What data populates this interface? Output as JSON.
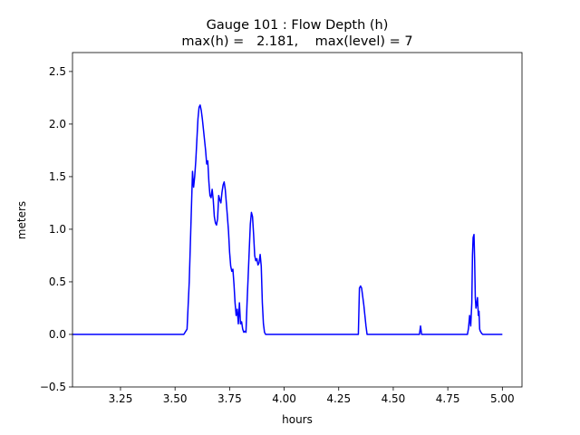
{
  "chart_data": {
    "type": "line",
    "title": "Gauge 101 : Flow Depth (h)",
    "subtitle": "max(h) =   2.181,    max(level) = 7",
    "xlabel": "hours",
    "ylabel": "meters",
    "xlim": [
      3.03,
      5.09
    ],
    "ylim": [
      -0.5,
      2.68
    ],
    "xticks": [
      "3.25",
      "3.50",
      "3.75",
      "4.00",
      "4.25",
      "4.50",
      "4.75",
      "5.00"
    ],
    "yticks": [
      "−0.5",
      "0.0",
      "0.5",
      "1.0",
      "1.5",
      "2.0",
      "2.5"
    ],
    "grid": false,
    "series": [
      {
        "color": "#0000ff",
        "x": [
          3.03,
          3.54,
          3.555,
          3.565,
          3.575,
          3.58,
          3.585,
          3.59,
          3.595,
          3.6,
          3.605,
          3.61,
          3.615,
          3.62,
          3.625,
          3.63,
          3.635,
          3.64,
          3.645,
          3.65,
          3.655,
          3.66,
          3.665,
          3.67,
          3.675,
          3.68,
          3.685,
          3.69,
          3.695,
          3.7,
          3.705,
          3.71,
          3.715,
          3.72,
          3.725,
          3.73,
          3.735,
          3.74,
          3.745,
          3.75,
          3.755,
          3.76,
          3.765,
          3.77,
          3.775,
          3.78,
          3.785,
          3.79,
          3.795,
          3.8,
          3.805,
          3.81,
          3.815,
          3.82,
          3.825,
          3.83,
          3.835,
          3.84,
          3.845,
          3.85,
          3.855,
          3.86,
          3.865,
          3.87,
          3.875,
          3.88,
          3.885,
          3.89,
          3.895,
          3.9,
          3.905,
          3.91,
          3.915,
          3.92,
          3.925,
          3.93,
          3.935,
          3.94,
          3.945,
          3.95,
          3.955,
          3.96,
          3.965,
          3.97,
          3.975,
          3.98,
          4.0,
          4.34,
          4.345,
          4.35,
          4.355,
          4.36,
          4.365,
          4.37,
          4.375,
          4.38,
          4.385,
          4.39,
          4.62,
          4.625,
          4.63,
          4.84,
          4.845,
          4.85,
          4.855,
          4.86,
          4.863,
          4.866,
          4.87,
          4.873,
          4.876,
          4.879,
          4.883,
          4.886,
          4.89,
          4.893,
          4.896,
          4.899,
          4.902,
          4.905,
          4.91,
          4.915,
          4.92,
          4.93,
          4.95,
          5.0
        ],
        "y": [
          0.0,
          0.0,
          0.05,
          0.5,
          1.2,
          1.55,
          1.4,
          1.5,
          1.65,
          1.85,
          2.05,
          2.16,
          2.181,
          2.13,
          2.05,
          1.95,
          1.85,
          1.75,
          1.62,
          1.65,
          1.45,
          1.32,
          1.3,
          1.38,
          1.28,
          1.12,
          1.06,
          1.04,
          1.1,
          1.32,
          1.28,
          1.25,
          1.35,
          1.42,
          1.45,
          1.38,
          1.25,
          1.12,
          0.98,
          0.78,
          0.65,
          0.6,
          0.62,
          0.48,
          0.3,
          0.18,
          0.24,
          0.1,
          0.3,
          0.1,
          0.12,
          0.05,
          0.02,
          0.03,
          0.02,
          0.3,
          0.55,
          0.8,
          1.05,
          1.16,
          1.12,
          0.95,
          0.75,
          0.7,
          0.72,
          0.66,
          0.68,
          0.76,
          0.65,
          0.3,
          0.1,
          0.02,
          0.0,
          0.0,
          0.0,
          0.0,
          0.0,
          0.0,
          0.0,
          0.0,
          0.0,
          0.0,
          0.0,
          0.0,
          0.0,
          0.0,
          0.0,
          0.0,
          0.44,
          0.46,
          0.44,
          0.36,
          0.28,
          0.18,
          0.08,
          0.0,
          0.0,
          0.0,
          0.0,
          0.08,
          0.0,
          0.0,
          0.06,
          0.18,
          0.08,
          0.3,
          0.75,
          0.92,
          0.95,
          0.7,
          0.35,
          0.25,
          0.3,
          0.35,
          0.18,
          0.22,
          0.05,
          0.03,
          0.02,
          0.01,
          0.0,
          0.0,
          0.0,
          0.0,
          0.0,
          0.0
        ]
      }
    ]
  }
}
